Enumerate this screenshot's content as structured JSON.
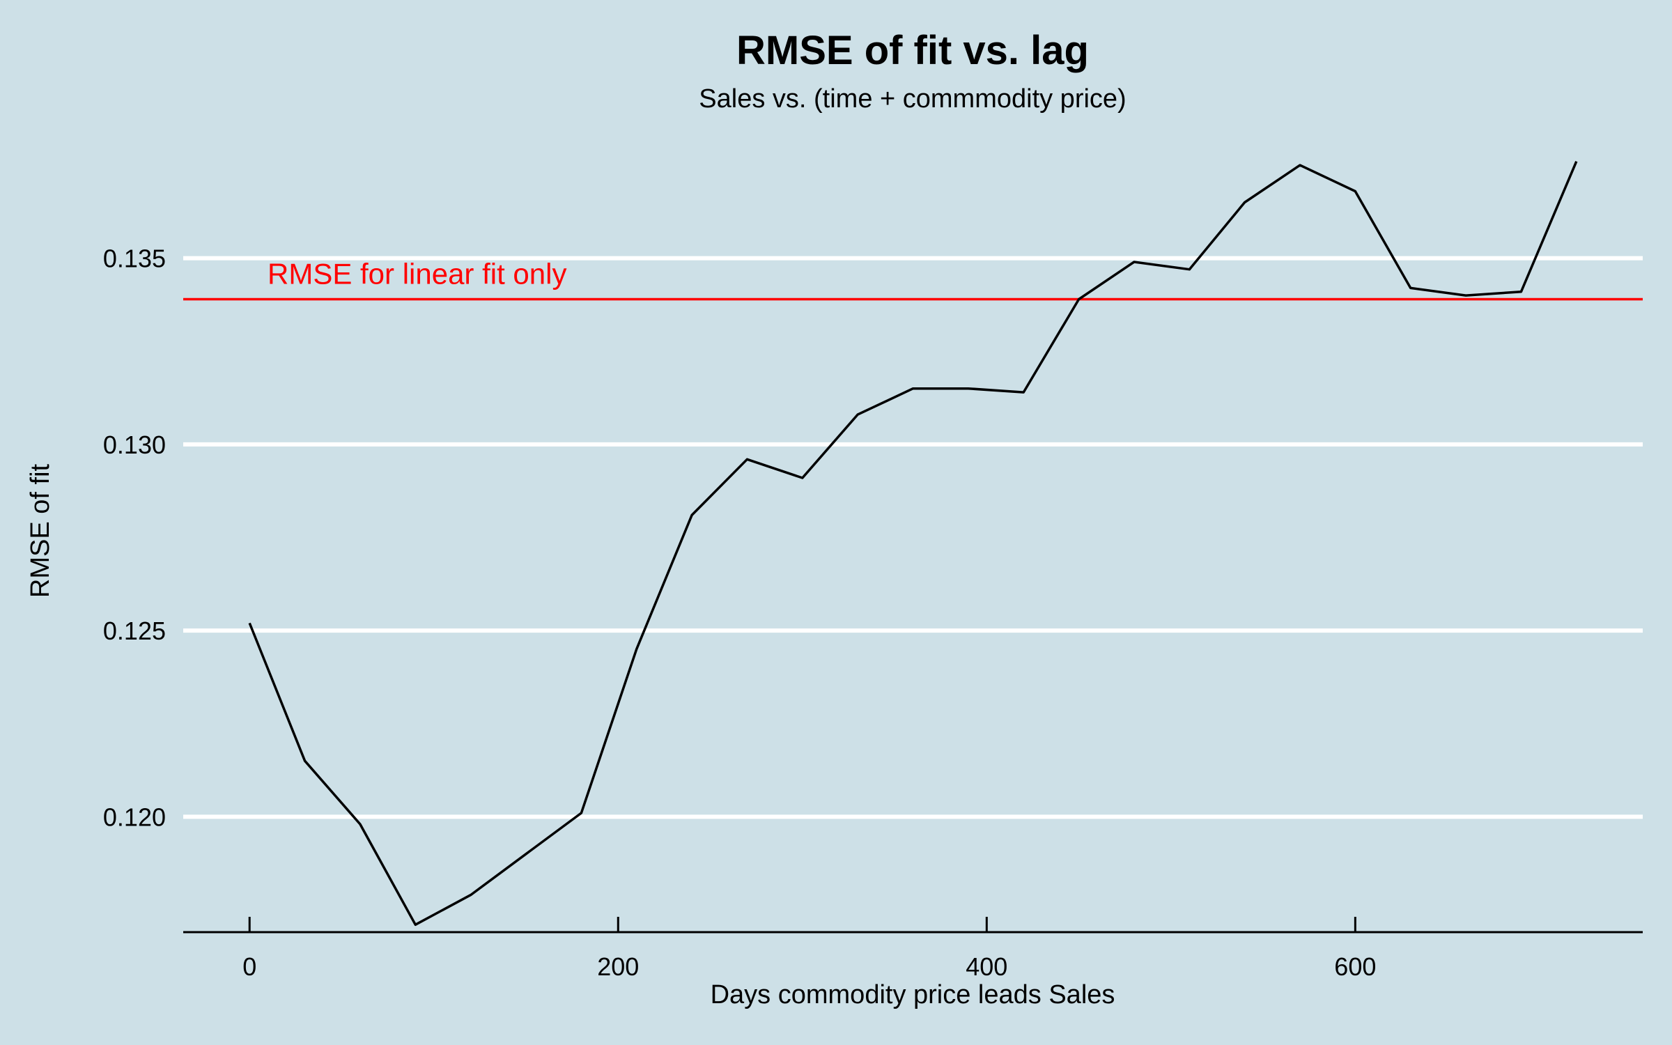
{
  "chart_data": {
    "type": "line",
    "title": "RMSE of fit vs. lag",
    "subtitle": "Sales vs. (time + commmodity price)",
    "xlabel": "Days commodity price leads Sales",
    "ylabel": "RMSE of fit",
    "xlim": [
      -36,
      756
    ],
    "ylim": [
      0.1169,
      0.1381
    ],
    "x_ticks": [
      0,
      200,
      400,
      600
    ],
    "x_tick_labels": [
      "0",
      "200",
      "400",
      "600"
    ],
    "y_ticks": [
      0.12,
      0.125,
      0.13,
      0.135
    ],
    "y_tick_labels": [
      "0.120",
      "0.125",
      "0.130",
      "0.135"
    ],
    "grid": "horizontal",
    "series": [
      {
        "color": "#000000",
        "x": [
          0,
          30,
          60,
          90,
          120,
          150,
          180,
          210,
          240,
          270,
          300,
          330,
          360,
          390,
          420,
          450,
          480,
          510,
          540,
          570,
          600,
          630,
          660,
          690,
          720
        ],
        "y": [
          0.1252,
          0.1215,
          0.1198,
          0.1171,
          0.1179,
          0.119,
          0.1201,
          0.1245,
          0.1281,
          0.1296,
          0.1291,
          0.1308,
          0.1315,
          0.1315,
          0.1314,
          0.1339,
          0.1349,
          0.1347,
          0.1365,
          0.1375,
          0.1368,
          0.1342,
          0.134,
          0.1341,
          0.1376
        ]
      }
    ],
    "reference_line": {
      "y": 0.1339,
      "label": "RMSE for linear fit only",
      "color": "#ff0000"
    },
    "colors": {
      "background": "#cde0e7",
      "grid": "#ffffff",
      "axis": "#000000"
    }
  }
}
